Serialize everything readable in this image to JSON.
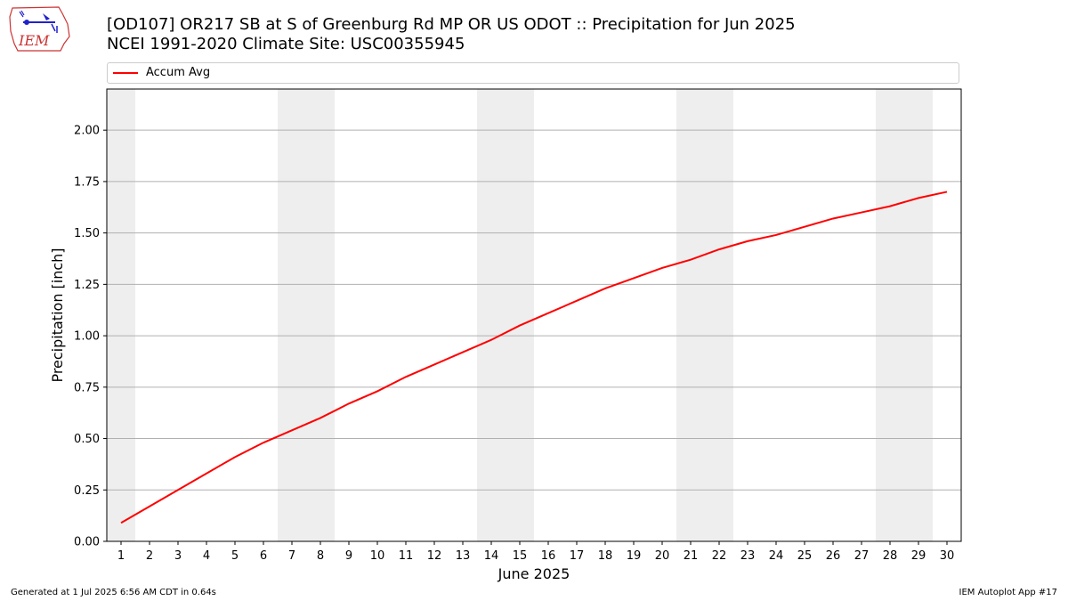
{
  "logo": {
    "text": "IEM",
    "icon": "iowa-map-logo-icon"
  },
  "header": {
    "title_line1": "[OD107] OR217 SB at S of Greenburg Rd MP OR US ODOT :: Precipitation for Jun 2025",
    "title_line2": "NCEI 1991-2020 Climate Site: USC00355945"
  },
  "footer": {
    "generated": "Generated at 1 Jul 2025 6:56 AM CDT in 0.64s",
    "app": "IEM Autoplot App #17"
  },
  "colors": {
    "line": "#ff0000",
    "weekend_band": "#eeeeee",
    "grid": "#b0b0b0"
  },
  "chart_data": {
    "type": "line",
    "title": "[OD107] OR217 SB at S of Greenburg Rd MP OR US ODOT :: Precipitation for Jun 2025",
    "subtitle": "NCEI 1991-2020 Climate Site: USC00355945",
    "xlabel": "June 2025",
    "ylabel": "Precipitation [inch]",
    "x": [
      1,
      2,
      3,
      4,
      5,
      6,
      7,
      8,
      9,
      10,
      11,
      12,
      13,
      14,
      15,
      16,
      17,
      18,
      19,
      20,
      21,
      22,
      23,
      24,
      25,
      26,
      27,
      28,
      29,
      30
    ],
    "xlim": [
      0.5,
      30.5
    ],
    "ylim": [
      0,
      2.2
    ],
    "yticks": [
      "0.00",
      "0.25",
      "0.50",
      "0.75",
      "1.00",
      "1.25",
      "1.50",
      "1.75",
      "2.00"
    ],
    "xticks": [
      "1",
      "2",
      "3",
      "4",
      "5",
      "6",
      "7",
      "8",
      "9",
      "10",
      "11",
      "12",
      "13",
      "14",
      "15",
      "16",
      "17",
      "18",
      "19",
      "20",
      "21",
      "22",
      "23",
      "24",
      "25",
      "26",
      "27",
      "28",
      "29",
      "30"
    ],
    "weekend_days": [
      1,
      7,
      8,
      14,
      15,
      21,
      22,
      28,
      29
    ],
    "grid": "horizontal",
    "legend_position": "top",
    "series": [
      {
        "name": "Accum Avg",
        "color": "#ff0000",
        "values": [
          0.09,
          0.17,
          0.25,
          0.33,
          0.41,
          0.48,
          0.54,
          0.6,
          0.67,
          0.73,
          0.8,
          0.86,
          0.92,
          0.98,
          1.05,
          1.11,
          1.17,
          1.23,
          1.28,
          1.33,
          1.37,
          1.42,
          1.46,
          1.49,
          1.53,
          1.57,
          1.6,
          1.63,
          1.67,
          1.7
        ]
      }
    ]
  }
}
